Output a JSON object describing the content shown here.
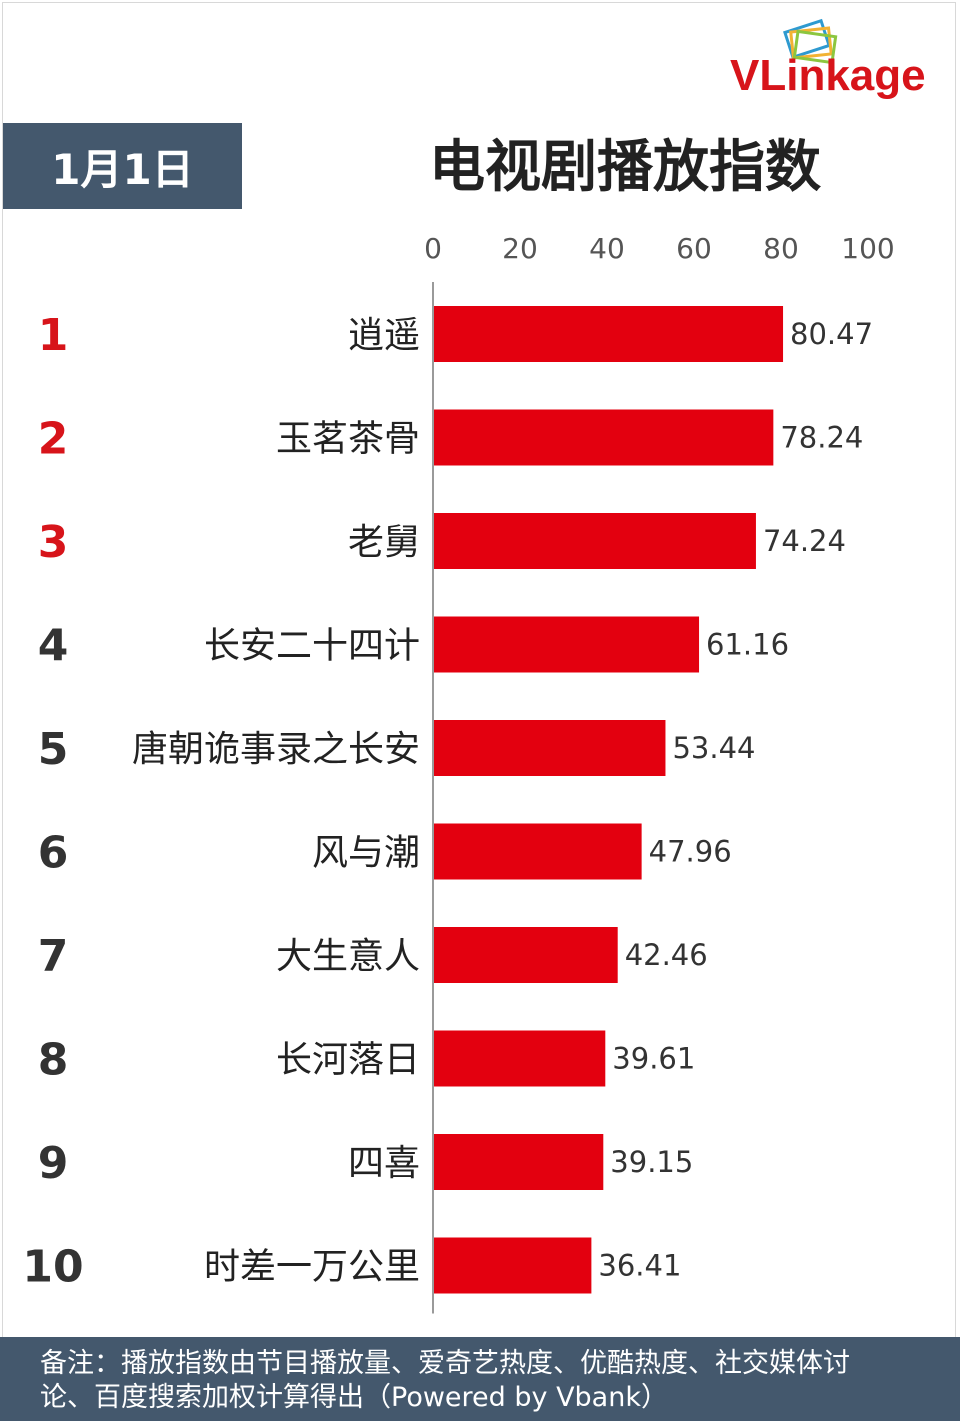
{
  "header": {
    "logo_text": "VLinkage",
    "date": "1月1日",
    "title": "电视剧播放指数"
  },
  "colors": {
    "bar": "#e3000f",
    "rank_top": "#d7141a",
    "rank_other": "#333333",
    "panel": "#44586d"
  },
  "chart_data": {
    "type": "bar",
    "orientation": "horizontal",
    "title": "电视剧播放指数",
    "xlim": [
      0,
      100
    ],
    "xticks": [
      "0",
      "20",
      "40",
      "60",
      "80",
      "100"
    ],
    "ranks": [
      "1",
      "2",
      "3",
      "4",
      "5",
      "6",
      "7",
      "8",
      "9",
      "10"
    ],
    "categories": [
      "逍遥",
      "玉茗茶骨",
      "老舅",
      "长安二十四计",
      "唐朝诡事录之长安",
      "风与潮",
      "大生意人",
      "长河落日",
      "四喜",
      "时差一万公里"
    ],
    "values": [
      80.47,
      78.24,
      74.24,
      61.16,
      53.44,
      47.96,
      42.46,
      39.61,
      39.15,
      36.41
    ],
    "value_labels": [
      "80.47",
      "78.24",
      "74.24",
      "61.16",
      "53.44",
      "47.96",
      "42.46",
      "39.61",
      "39.15",
      "36.41"
    ],
    "grid": false
  },
  "footer": {
    "note_line1": "备注：播放指数由节目播放量、爱奇艺热度、优酷热度、社交媒体讨",
    "note_line2": "论、百度搜索加权计算得出（Powered by Vbank）"
  }
}
